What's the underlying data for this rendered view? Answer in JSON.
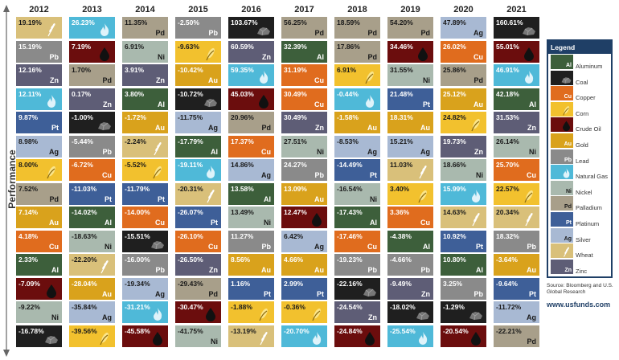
{
  "axis_label": "Performance",
  "legend_title": "Legend",
  "source": "Source: Bloomberg and U.S. Global Research",
  "website": "www.usfunds.com",
  "colors": {
    "Al": "#3d5f3b",
    "Coal": "#1f1f1f",
    "Cu": "#e06c1e",
    "Corn": "#f2c12e",
    "Crude": "#6b0d0d",
    "Au": "#d9a21c",
    "Pb": "#8a8a8a",
    "NG": "#4fb9d8",
    "Ni": "#a9b9ae",
    "Pd": "#a89f8a",
    "Pt": "#3e5f98",
    "Ag": "#a8b9d3",
    "Wheat": "#d9c07a",
    "Zn": "#5e5d76"
  },
  "legend_items": [
    {
      "key": "Al",
      "label": "Aluminum",
      "symbol": "Al"
    },
    {
      "key": "Coal",
      "label": "Coal",
      "symbol": ""
    },
    {
      "key": "Cu",
      "label": "Copper",
      "symbol": "Cu"
    },
    {
      "key": "Corn",
      "label": "Corn",
      "symbol": ""
    },
    {
      "key": "Crude",
      "label": "Crude Oil",
      "symbol": ""
    },
    {
      "key": "Au",
      "label": "Gold",
      "symbol": "Au"
    },
    {
      "key": "Pb",
      "label": "Lead",
      "symbol": "Pb"
    },
    {
      "key": "NG",
      "label": "Natural Gas",
      "symbol": ""
    },
    {
      "key": "Ni",
      "label": "Nickel",
      "symbol": "Ni"
    },
    {
      "key": "Pd",
      "label": "Palladium",
      "symbol": "Pd"
    },
    {
      "key": "Pt",
      "label": "Platinum",
      "symbol": "Pt"
    },
    {
      "key": "Ag",
      "label": "Silver",
      "symbol": "Ag"
    },
    {
      "key": "Wheat",
      "label": "Wheat",
      "symbol": ""
    },
    {
      "key": "Zn",
      "label": "Zinc",
      "symbol": "Zn"
    }
  ],
  "chart_data": {
    "type": "table",
    "years": [
      {
        "year": "2012",
        "cells": [
          {
            "k": "Wheat",
            "v": "19.19%"
          },
          {
            "k": "Pb",
            "v": "15.19%"
          },
          {
            "k": "Zn",
            "v": "12.16%"
          },
          {
            "k": "NG",
            "v": "12.11%"
          },
          {
            "k": "Pt",
            "v": "9.87%"
          },
          {
            "k": "Ag",
            "v": "8.98%"
          },
          {
            "k": "Corn",
            "v": "8.00%"
          },
          {
            "k": "Pd",
            "v": "7.52%"
          },
          {
            "k": "Au",
            "v": "7.14%"
          },
          {
            "k": "Cu",
            "v": "4.18%"
          },
          {
            "k": "Al",
            "v": "2.33%"
          },
          {
            "k": "Crude",
            "v": "-7.09%"
          },
          {
            "k": "Ni",
            "v": "-9.22%"
          },
          {
            "k": "Coal",
            "v": "-16.78%"
          }
        ]
      },
      {
        "year": "2013",
        "cells": [
          {
            "k": "NG",
            "v": "26.23%"
          },
          {
            "k": "Crude",
            "v": "7.19%"
          },
          {
            "k": "Pd",
            "v": "1.70%"
          },
          {
            "k": "Zn",
            "v": "0.17%"
          },
          {
            "k": "Coal",
            "v": "-1.00%"
          },
          {
            "k": "Pb",
            "v": "-5.44%"
          },
          {
            "k": "Cu",
            "v": "-6.72%"
          },
          {
            "k": "Pt",
            "v": "-11.03%"
          },
          {
            "k": "Al",
            "v": "-14.02%"
          },
          {
            "k": "Ni",
            "v": "-18.63%"
          },
          {
            "k": "Wheat",
            "v": "-22.20%"
          },
          {
            "k": "Au",
            "v": "-28.04%"
          },
          {
            "k": "Ag",
            "v": "-35.84%"
          },
          {
            "k": "Corn",
            "v": "-39.56%"
          }
        ]
      },
      {
        "year": "2014",
        "cells": [
          {
            "k": "Pd",
            "v": "11.35%"
          },
          {
            "k": "Ni",
            "v": "6.91%"
          },
          {
            "k": "Zn",
            "v": "3.91%"
          },
          {
            "k": "Al",
            "v": "3.80%"
          },
          {
            "k": "Au",
            "v": "-1.72%"
          },
          {
            "k": "Wheat",
            "v": "-2.24%"
          },
          {
            "k": "Corn",
            "v": "-5.52%"
          },
          {
            "k": "Pt",
            "v": "-11.79%"
          },
          {
            "k": "Cu",
            "v": "-14.00%"
          },
          {
            "k": "Coal",
            "v": "-15.51%"
          },
          {
            "k": "Pb",
            "v": "-16.00%"
          },
          {
            "k": "Ag",
            "v": "-19.34%"
          },
          {
            "k": "NG",
            "v": "-31.21%"
          },
          {
            "k": "Crude",
            "v": "-45.58%"
          }
        ]
      },
      {
        "year": "2015",
        "cells": [
          {
            "k": "Pb",
            "v": "-2.50%"
          },
          {
            "k": "Corn",
            "v": "-9.63%"
          },
          {
            "k": "Au",
            "v": "-10.42%"
          },
          {
            "k": "Coal",
            "v": "-10.72%"
          },
          {
            "k": "Ag",
            "v": "-11.75%"
          },
          {
            "k": "Al",
            "v": "-17.79%"
          },
          {
            "k": "NG",
            "v": "-19.11%"
          },
          {
            "k": "Wheat",
            "v": "-20.31%"
          },
          {
            "k": "Pt",
            "v": "-26.07%"
          },
          {
            "k": "Cu",
            "v": "-26.10%"
          },
          {
            "k": "Zn",
            "v": "-26.50%"
          },
          {
            "k": "Pd",
            "v": "-29.43%"
          },
          {
            "k": "Crude",
            "v": "-30.47%"
          },
          {
            "k": "Ni",
            "v": "-41.75%"
          }
        ]
      },
      {
        "year": "2016",
        "cells": [
          {
            "k": "Coal",
            "v": "103.67%"
          },
          {
            "k": "Zn",
            "v": "60.59%"
          },
          {
            "k": "NG",
            "v": "59.35%"
          },
          {
            "k": "Crude",
            "v": "45.03%"
          },
          {
            "k": "Pd",
            "v": "20.96%"
          },
          {
            "k": "Cu",
            "v": "17.37%"
          },
          {
            "k": "Ag",
            "v": "14.86%"
          },
          {
            "k": "Al",
            "v": "13.58%"
          },
          {
            "k": "Ni",
            "v": "13.49%"
          },
          {
            "k": "Pb",
            "v": "11.27%"
          },
          {
            "k": "Au",
            "v": "8.56%"
          },
          {
            "k": "Pt",
            "v": "1.16%"
          },
          {
            "k": "Corn",
            "v": "-1.88%"
          },
          {
            "k": "Wheat",
            "v": "-13.19%"
          }
        ]
      },
      {
        "year": "2017",
        "cells": [
          {
            "k": "Pd",
            "v": "56.25%"
          },
          {
            "k": "Al",
            "v": "32.39%"
          },
          {
            "k": "Cu",
            "v": "31.19%"
          },
          {
            "k": "Cu",
            "v": "30.49%"
          },
          {
            "k": "Zn",
            "v": "30.49%"
          },
          {
            "k": "Ni",
            "v": "27.51%"
          },
          {
            "k": "Pb",
            "v": "24.27%"
          },
          {
            "k": "Au",
            "v": "13.09%"
          },
          {
            "k": "Crude",
            "v": "12.47%"
          },
          {
            "k": "Ag",
            "v": "6.42%"
          },
          {
            "k": "Au",
            "v": "4.66%"
          },
          {
            "k": "Pt",
            "v": "2.99%"
          },
          {
            "k": "Corn",
            "v": "-0.36%"
          },
          {
            "k": "NG",
            "v": "-20.70%"
          }
        ]
      },
      {
        "year": "2018",
        "cells": [
          {
            "k": "Pd",
            "v": "18.59%"
          },
          {
            "k": "Pd",
            "v": "17.86%"
          },
          {
            "k": "Corn",
            "v": "6.91%"
          },
          {
            "k": "NG",
            "v": "-0.44%"
          },
          {
            "k": "Au",
            "v": "-1.58%"
          },
          {
            "k": "Ag",
            "v": "-8.53%"
          },
          {
            "k": "Pt",
            "v": "-14.49%"
          },
          {
            "k": "Ni",
            "v": "-16.54%"
          },
          {
            "k": "Al",
            "v": "-17.43%"
          },
          {
            "k": "Cu",
            "v": "-17.46%"
          },
          {
            "k": "Pb",
            "v": "-19.23%"
          },
          {
            "k": "Coal",
            "v": "-22.16%"
          },
          {
            "k": "Zn",
            "v": "-24.54%"
          },
          {
            "k": "Crude",
            "v": "-24.84%"
          }
        ]
      },
      {
        "year": "2019",
        "cells": [
          {
            "k": "Pd",
            "v": "54.20%"
          },
          {
            "k": "Crude",
            "v": "34.46%"
          },
          {
            "k": "Ni",
            "v": "31.55%"
          },
          {
            "k": "Pt",
            "v": "21.48%"
          },
          {
            "k": "Au",
            "v": "18.31%"
          },
          {
            "k": "Ag",
            "v": "15.21%"
          },
          {
            "k": "Wheat",
            "v": "11.03%"
          },
          {
            "k": "Corn",
            "v": "3.40%"
          },
          {
            "k": "Cu",
            "v": "3.36%"
          },
          {
            "k": "Al",
            "v": "-4.38%"
          },
          {
            "k": "Pb",
            "v": "-4.66%"
          },
          {
            "k": "Zn",
            "v": "-9.49%"
          },
          {
            "k": "Coal",
            "v": "-18.02%"
          },
          {
            "k": "NG",
            "v": "-25.54%"
          }
        ]
      },
      {
        "year": "2020",
        "cells": [
          {
            "k": "Ag",
            "v": "47.89%"
          },
          {
            "k": "Cu",
            "v": "26.02%"
          },
          {
            "k": "Pd",
            "v": "25.86%"
          },
          {
            "k": "Au",
            "v": "25.12%"
          },
          {
            "k": "Corn",
            "v": "24.82%"
          },
          {
            "k": "Zn",
            "v": "19.73%"
          },
          {
            "k": "Ni",
            "v": "18.66%"
          },
          {
            "k": "NG",
            "v": "15.99%"
          },
          {
            "k": "Wheat",
            "v": "14.63%"
          },
          {
            "k": "Pt",
            "v": "10.92%"
          },
          {
            "k": "Al",
            "v": "10.80%"
          },
          {
            "k": "Pb",
            "v": "3.25%"
          },
          {
            "k": "Coal",
            "v": "-1.29%"
          },
          {
            "k": "Crude",
            "v": "-20.54%"
          }
        ]
      },
      {
        "year": "2021",
        "cells": [
          {
            "k": "Coal",
            "v": "160.61%"
          },
          {
            "k": "Crude",
            "v": "55.01%"
          },
          {
            "k": "NG",
            "v": "46.91%"
          },
          {
            "k": "Al",
            "v": "42.18%"
          },
          {
            "k": "Zn",
            "v": "31.53%"
          },
          {
            "k": "Ni",
            "v": "26.14%"
          },
          {
            "k": "Cu",
            "v": "25.70%"
          },
          {
            "k": "Corn",
            "v": "22.57%"
          },
          {
            "k": "Wheat",
            "v": "20.34%"
          },
          {
            "k": "Pb",
            "v": "18.32%"
          },
          {
            "k": "Au",
            "v": "-3.64%"
          },
          {
            "k": "Pt",
            "v": "-9.64%"
          },
          {
            "k": "Ag",
            "v": "-11.72%"
          },
          {
            "k": "Pd",
            "v": "-22.21%"
          }
        ]
      }
    ]
  }
}
